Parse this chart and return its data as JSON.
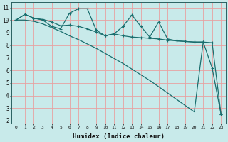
{
  "xlabel": "Humidex (Indice chaleur)",
  "bg_color": "#c8eaea",
  "grid_color": "#e8a0a0",
  "line_color": "#1a6e6e",
  "xlim": [
    -0.5,
    23.5
  ],
  "ylim": [
    1.8,
    11.4
  ],
  "xticks": [
    0,
    1,
    2,
    3,
    4,
    5,
    6,
    7,
    8,
    9,
    10,
    11,
    12,
    13,
    14,
    15,
    16,
    17,
    18,
    19,
    20,
    21,
    22,
    23
  ],
  "yticks": [
    2,
    3,
    4,
    5,
    6,
    7,
    8,
    9,
    10,
    11
  ],
  "line1_x": [
    0,
    1,
    2,
    3,
    4,
    5,
    6,
    7,
    8,
    9,
    10,
    11,
    12,
    13,
    14,
    15,
    16,
    17,
    18,
    19,
    20,
    21,
    22,
    23
  ],
  "line1_y": [
    10.0,
    10.45,
    10.15,
    10.05,
    9.85,
    9.55,
    9.6,
    9.5,
    9.3,
    9.05,
    8.75,
    8.9,
    8.75,
    8.65,
    8.6,
    8.55,
    8.5,
    8.4,
    8.35,
    8.3,
    8.25,
    8.25,
    8.2,
    2.5
  ],
  "line2_x": [
    0,
    1,
    2,
    3,
    4,
    5,
    6,
    7,
    8,
    9,
    10,
    11,
    12,
    13,
    14,
    15,
    16,
    17,
    18,
    19,
    20,
    21,
    22,
    23
  ],
  "line2_y": [
    10.0,
    10.45,
    10.15,
    10.0,
    9.5,
    9.3,
    10.55,
    10.9,
    10.9,
    9.2,
    8.75,
    8.9,
    9.5,
    10.4,
    9.5,
    8.65,
    9.85,
    8.5,
    8.35,
    8.3,
    8.25,
    8.25,
    6.2,
    2.5
  ],
  "line3_x": [
    0,
    1,
    2,
    3,
    4,
    5,
    6,
    7,
    8,
    9,
    10,
    11,
    12,
    13,
    14,
    15,
    16,
    17,
    18,
    19,
    20,
    21
  ],
  "line3_y": [
    10.0,
    10.0,
    9.9,
    9.7,
    9.4,
    9.1,
    8.75,
    8.45,
    8.1,
    7.75,
    7.35,
    6.95,
    6.55,
    6.1,
    5.65,
    5.2,
    4.7,
    4.2,
    3.7,
    3.2,
    2.7,
    8.25
  ]
}
